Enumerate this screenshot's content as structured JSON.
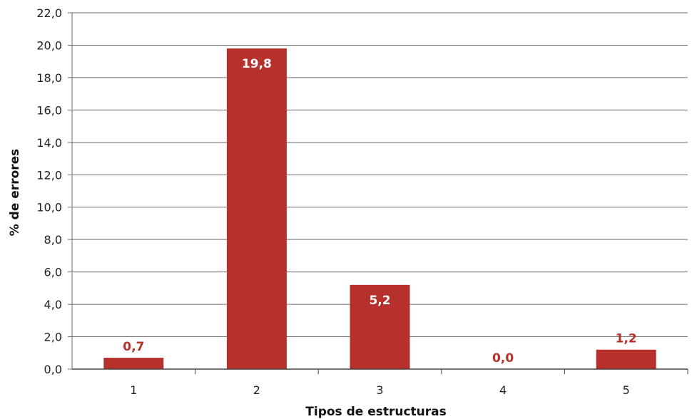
{
  "chart_data": {
    "type": "bar",
    "categories": [
      "1",
      "2",
      "3",
      "4",
      "5"
    ],
    "values": [
      0.7,
      19.8,
      5.2,
      0.0,
      1.2
    ],
    "value_labels": [
      "0,7",
      "19,8",
      "5,2",
      "0,0",
      "1,2"
    ],
    "title": "",
    "xlabel": "Tipos de estructuras",
    "ylabel": "% de errores",
    "ylim": [
      0,
      22
    ],
    "yticks": [
      "0,0",
      "2,0",
      "4,0",
      "6,0",
      "8,0",
      "10,0",
      "12,0",
      "14,0",
      "16,0",
      "18,0",
      "20,0",
      "22,0"
    ],
    "grid": true,
    "legend": "none",
    "colors": {
      "bar": "#b7312c",
      "grid": "#6e6e6e",
      "label_inside": "#ffffff",
      "label_outside": "#b7312c"
    }
  }
}
